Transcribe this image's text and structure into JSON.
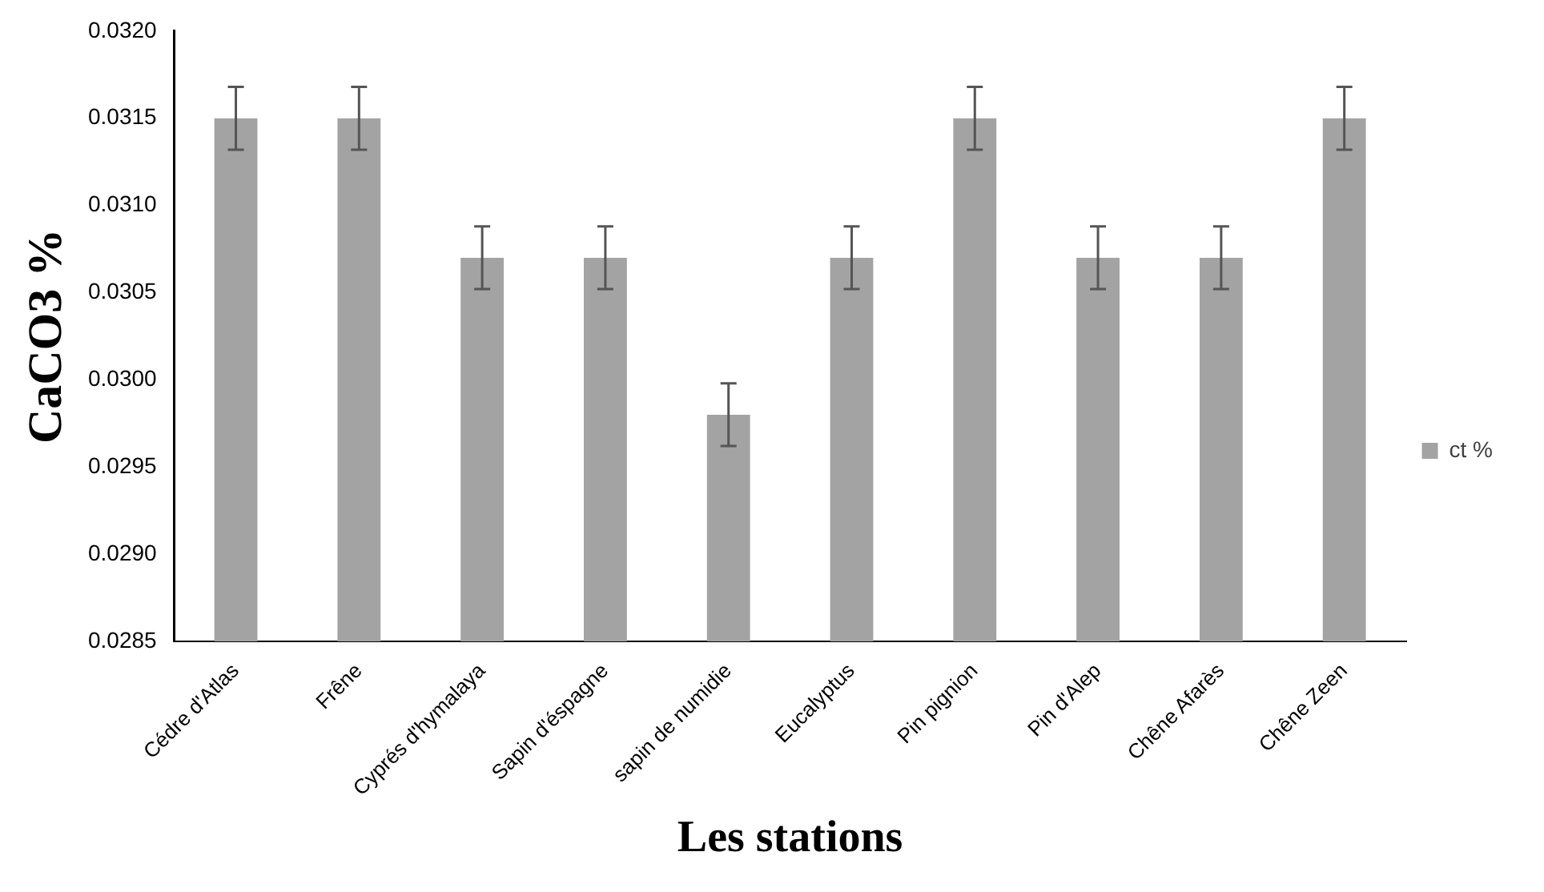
{
  "chart_data": {
    "type": "bar",
    "xlabel": "Les stations",
    "ylabel": "CaCO3 %",
    "categories": [
      "Cédre d'Atlas",
      "Frêne",
      "Cyprés d'hymalaya",
      "Sapin d'éspagne",
      "sapin de numidie",
      "Eucalyptus",
      "Pin pignion",
      "Pin d'Alep",
      "Chêne Afarès",
      "Chêne Zeen"
    ],
    "series": [
      {
        "name": "ct %",
        "color": "#a3a3a3",
        "values": [
          0.0315,
          0.0315,
          0.0307,
          0.0307,
          0.0298,
          0.0307,
          0.0315,
          0.0307,
          0.0307,
          0.0315
        ],
        "errors": [
          0.00018,
          0.00018,
          0.00018,
          0.00018,
          0.00018,
          0.00018,
          0.00018,
          0.00018,
          0.00018,
          0.00018
        ]
      }
    ],
    "ylim": [
      0.0285,
      0.032
    ],
    "yticks": [
      {
        "value": 0.0285,
        "label": "0.0285"
      },
      {
        "value": 0.029,
        "label": "0.0290"
      },
      {
        "value": 0.0295,
        "label": "0.0295"
      },
      {
        "value": 0.03,
        "label": "0.0300"
      },
      {
        "value": 0.0305,
        "label": "0.0305"
      },
      {
        "value": 0.031,
        "label": "0.0310"
      },
      {
        "value": 0.0315,
        "label": "0.0315"
      },
      {
        "value": 0.032,
        "label": "0.0320"
      }
    ],
    "grid": false,
    "legend": "right"
  }
}
